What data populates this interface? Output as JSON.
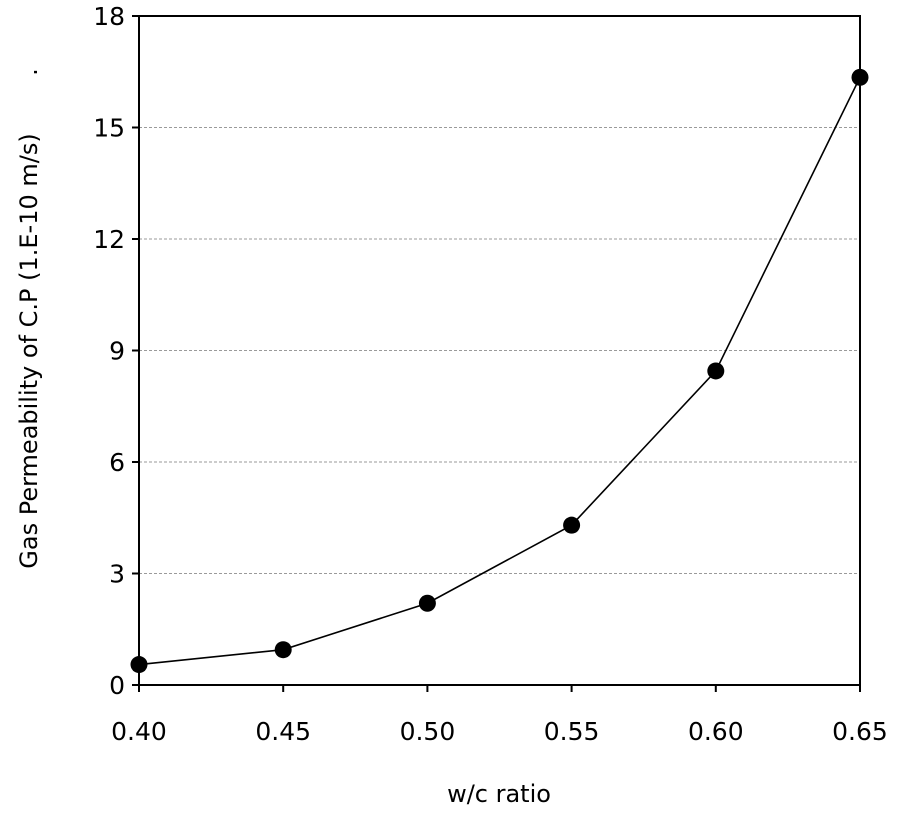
{
  "chart_data": {
    "type": "line",
    "xlabel": "w/c ratio",
    "ylabel": "Gas Permeability of C.P (1.E-10 m/s)",
    "ylabel_trailing_mark": ".",
    "xlim": [
      0.4,
      0.65
    ],
    "ylim": [
      0,
      18
    ],
    "x_ticks": [
      0.4,
      0.45,
      0.5,
      0.55,
      0.6,
      0.65
    ],
    "x_tick_labels": [
      "0.40",
      "0.45",
      "0.50",
      "0.55",
      "0.60",
      "0.65"
    ],
    "y_ticks": [
      0,
      3,
      6,
      9,
      12,
      15,
      18
    ],
    "y_tick_labels": [
      "0",
      "3",
      "6",
      "9",
      "12",
      "15",
      "18"
    ],
    "grid": "horizontal dashed",
    "legend": "none",
    "series": [
      {
        "x": [
          0.4,
          0.45,
          0.5,
          0.55,
          0.6,
          0.65
        ],
        "y": [
          0.55,
          0.95,
          2.2,
          4.3,
          8.45,
          16.35
        ],
        "marker": "filled-circle",
        "color": "#000000"
      }
    ]
  }
}
